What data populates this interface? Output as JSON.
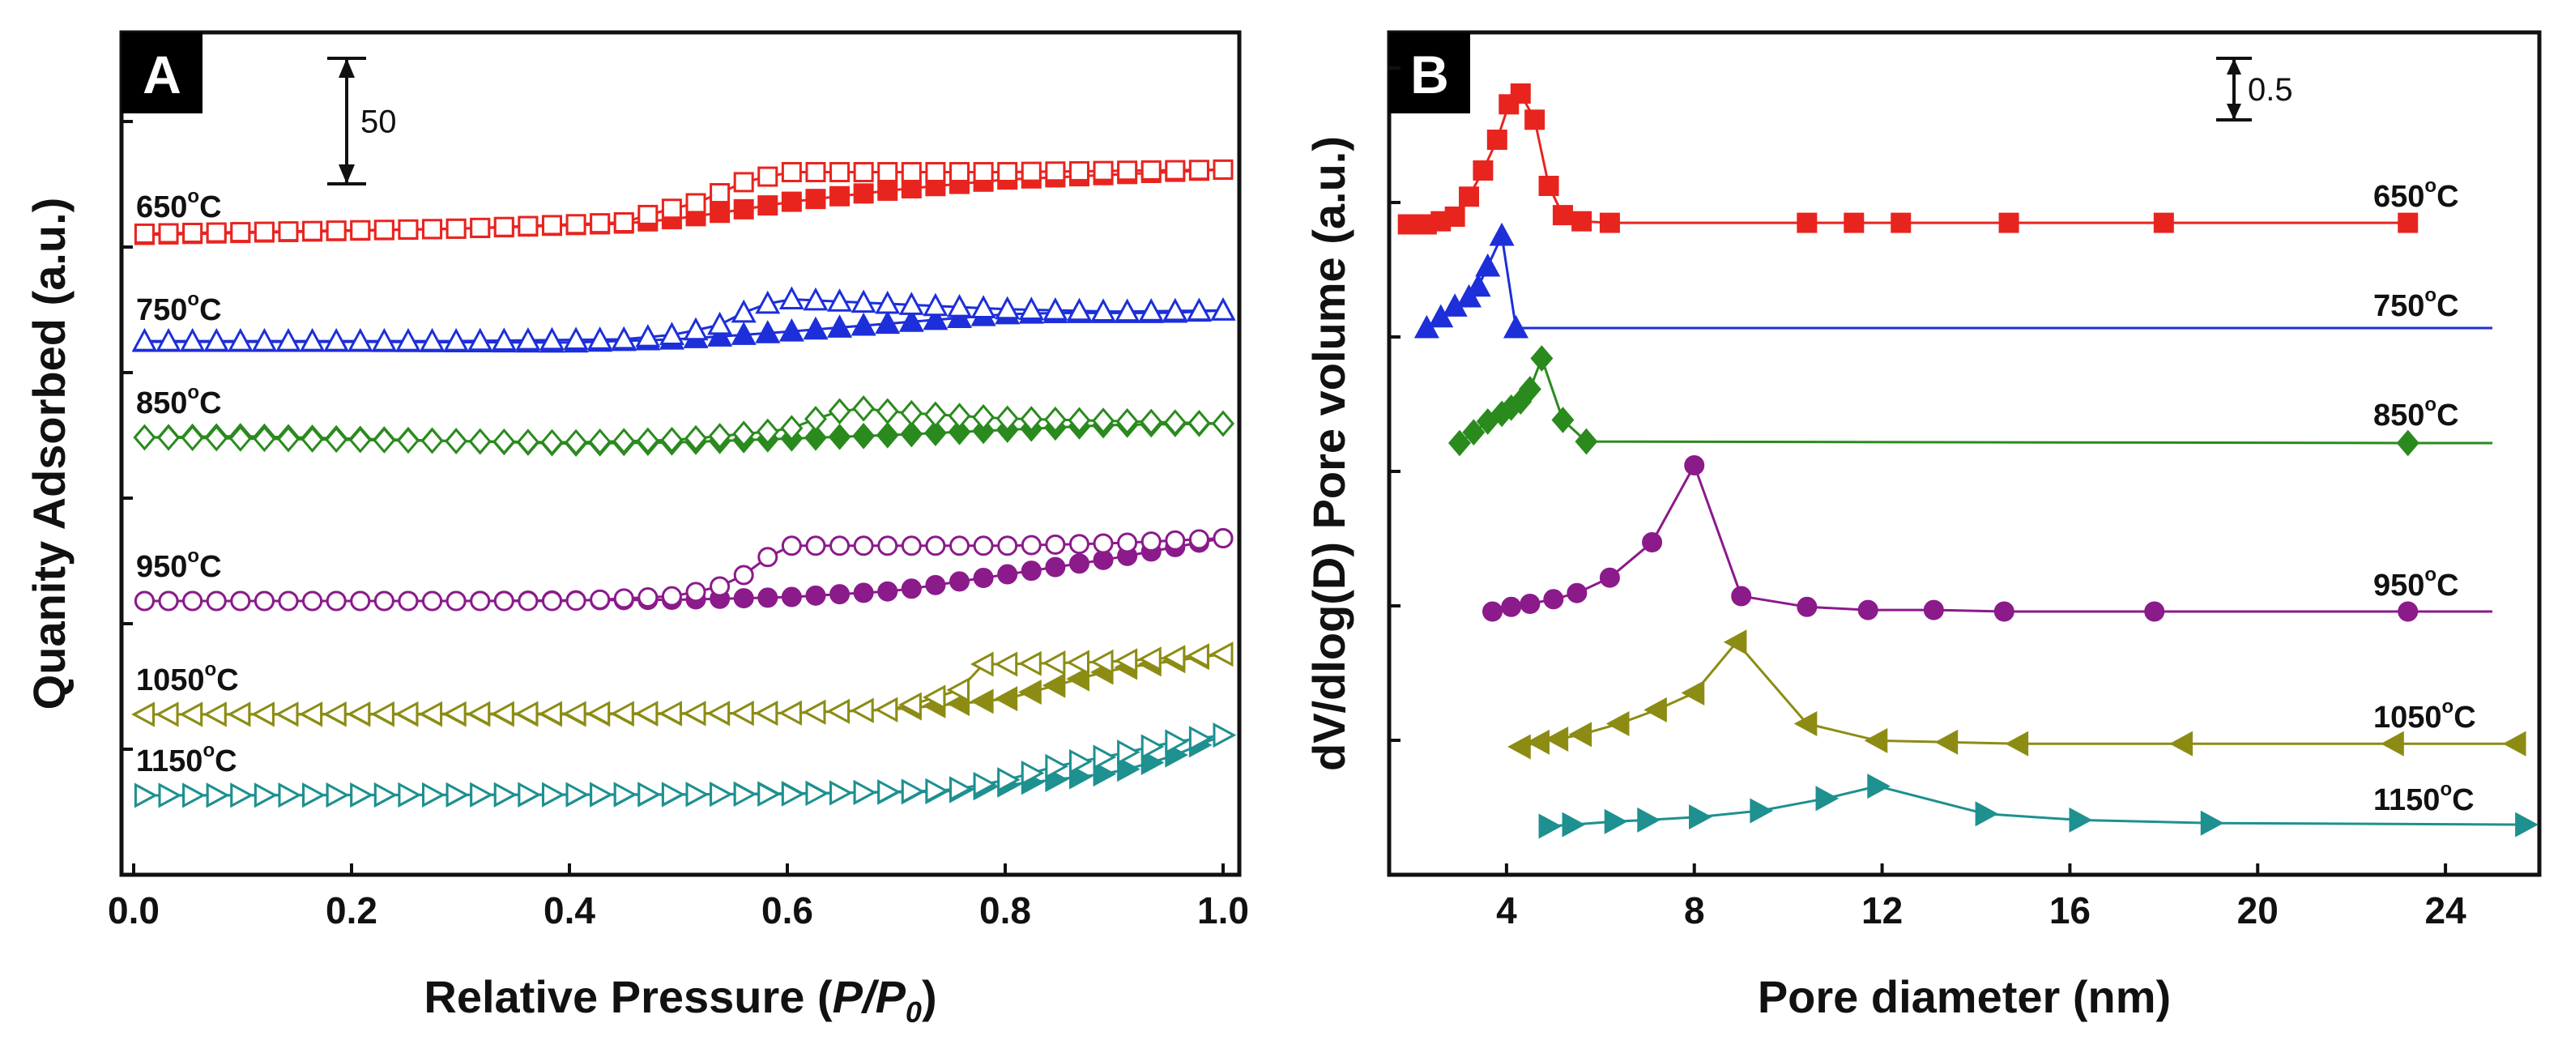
{
  "colors": {
    "650": "#e8241f",
    "750": "#1c2fd9",
    "850": "#2a8a1e",
    "950": "#8b1a8b",
    "1050": "#8c8c14",
    "1150": "#1e9090"
  },
  "chart_data": [
    {
      "type": "line",
      "panel_label": "A",
      "xlabel_main": "Relative Pressure (",
      "xlabel_italic": "P/P",
      "xlabel_sub": "0",
      "xlabel_end": ")",
      "ylabel": "Quanity Adsorbed (a.u.)",
      "xlim": [
        0.0,
        1.0
      ],
      "ylim": [
        0,
        100
      ],
      "xticks": [
        "0.0",
        "0.2",
        "0.4",
        "0.6",
        "0.8",
        "1.0"
      ],
      "scale_bar": {
        "label": "50",
        "value": 50
      },
      "series": [
        {
          "temp": "650",
          "label": "650",
          "unit": "C",
          "marker": "square",
          "adsorption": [
            [
              0.01,
              0.0
            ],
            [
              0.3,
              2.5
            ],
            [
              0.45,
              4.5
            ],
            [
              0.5,
              6.5
            ],
            [
              0.55,
              9.5
            ],
            [
              0.6,
              13
            ],
            [
              0.7,
              18
            ],
            [
              0.8,
              22
            ],
            [
              0.9,
              24
            ],
            [
              1.0,
              26
            ]
          ],
          "desorption": [
            [
              1.0,
              26
            ],
            [
              0.8,
              25
            ],
            [
              0.65,
              25
            ],
            [
              0.6,
              25
            ],
            [
              0.56,
              21
            ],
            [
              0.52,
              13
            ],
            [
              0.48,
              9
            ],
            [
              0.45,
              5
            ],
            [
              0.3,
              2.5
            ],
            [
              0.01,
              0.5
            ]
          ]
        },
        {
          "temp": "750",
          "label": "750",
          "unit": "C",
          "marker": "triangle-up",
          "adsorption": [
            [
              0.01,
              0.0
            ],
            [
              0.2,
              0.0
            ],
            [
              0.4,
              -0.3
            ],
            [
              0.5,
              1.0
            ],
            [
              0.6,
              4.0
            ],
            [
              0.7,
              7.5
            ],
            [
              0.8,
              11
            ],
            [
              0.85,
              11.5
            ],
            [
              0.95,
              11.5
            ],
            [
              1.0,
              12.5
            ]
          ],
          "desorption": [
            [
              1.0,
              12.5
            ],
            [
              0.9,
              12
            ],
            [
              0.8,
              13
            ],
            [
              0.7,
              15
            ],
            [
              0.6,
              17
            ],
            [
              0.57,
              14
            ],
            [
              0.54,
              7
            ],
            [
              0.5,
              3
            ],
            [
              0.45,
              1
            ],
            [
              0.3,
              0.3
            ],
            [
              0.01,
              0.3
            ]
          ]
        },
        {
          "temp": "850",
          "label": "850",
          "unit": "C",
          "marker": "diamond",
          "adsorption": [
            [
              0.01,
              0.0
            ],
            [
              0.1,
              0.5
            ],
            [
              0.3,
              -1.5
            ],
            [
              0.4,
              -2.5
            ],
            [
              0.5,
              -2.0
            ],
            [
              0.6,
              -0.5
            ],
            [
              0.7,
              1.0
            ],
            [
              0.8,
              3.0
            ],
            [
              0.9,
              5.0
            ],
            [
              1.0,
              5.5
            ]
          ],
          "desorption": [
            [
              1.0,
              5.5
            ],
            [
              0.9,
              6.5
            ],
            [
              0.8,
              7.5
            ],
            [
              0.7,
              10
            ],
            [
              0.66,
              12
            ],
            [
              0.63,
              8
            ],
            [
              0.6,
              3
            ],
            [
              0.55,
              1
            ],
            [
              0.5,
              -1
            ],
            [
              0.4,
              -2
            ],
            [
              0.2,
              -1
            ],
            [
              0.01,
              0.0
            ]
          ]
        },
        {
          "temp": "950",
          "label": "950",
          "unit": "C",
          "marker": "circle",
          "adsorption": [
            [
              0.01,
              0.0
            ],
            [
              0.3,
              0.0
            ],
            [
              0.5,
              0.5
            ],
            [
              0.6,
              1.5
            ],
            [
              0.7,
              4.0
            ],
            [
              0.8,
              10.5
            ],
            [
              0.9,
              17
            ],
            [
              1.0,
              25
            ]
          ],
          "desorption": [
            [
              1.0,
              25
            ],
            [
              0.9,
              23
            ],
            [
              0.8,
              22
            ],
            [
              0.7,
              22
            ],
            [
              0.6,
              22
            ],
            [
              0.58,
              17
            ],
            [
              0.55,
              7
            ],
            [
              0.5,
              2
            ],
            [
              0.4,
              0.0
            ],
            [
              0.01,
              0.0
            ]
          ]
        },
        {
          "temp": "1050",
          "label": "1050",
          "unit": "C",
          "marker": "triangle-left",
          "adsorption": [
            [
              0.01,
              0.0
            ],
            [
              0.4,
              0.0
            ],
            [
              0.6,
              0.5
            ],
            [
              0.7,
              2.0
            ],
            [
              0.8,
              6.0
            ],
            [
              0.9,
              18
            ],
            [
              1.0,
              24
            ]
          ],
          "desorption": [
            [
              1.0,
              24
            ],
            [
              0.9,
              21
            ],
            [
              0.8,
              20
            ],
            [
              0.78,
              20
            ],
            [
              0.76,
              10
            ],
            [
              0.7,
              2
            ],
            [
              0.6,
              0.5
            ],
            [
              0.01,
              0.0
            ]
          ]
        },
        {
          "temp": "1150",
          "label": "1150",
          "unit": "C",
          "marker": "triangle-right",
          "adsorption": [
            [
              0.01,
              0.0
            ],
            [
              0.5,
              0.3
            ],
            [
              0.75,
              1.5
            ],
            [
              0.8,
              4.0
            ],
            [
              0.9,
              9
            ],
            [
              0.95,
              15
            ],
            [
              1.0,
              24
            ]
          ],
          "desorption": [
            [
              1.0,
              24
            ],
            [
              0.95,
              21
            ],
            [
              0.9,
              16
            ],
            [
              0.85,
              12
            ],
            [
              0.8,
              6
            ],
            [
              0.75,
              2
            ],
            [
              0.6,
              0.5
            ],
            [
              0.01,
              0.0
            ]
          ]
        }
      ]
    },
    {
      "type": "line",
      "panel_label": "B",
      "xlabel": "Pore diameter (nm)",
      "ylabel": "dV/dlog(D) Pore volume (a.u.)",
      "xlim": [
        1.5,
        26
      ],
      "xticks": [
        4,
        8,
        12,
        16,
        20,
        24
      ],
      "scale_bar": {
        "label": "0.5",
        "value": 0.5
      },
      "series": [
        {
          "temp": "650",
          "label": "650",
          "unit": "C",
          "marker": "square",
          "points": [
            [
              1.9,
              0.0
            ],
            [
              2.3,
              0.0
            ],
            [
              2.6,
              0.02
            ],
            [
              2.9,
              0.05
            ],
            [
              3.2,
              0.18
            ],
            [
              3.5,
              0.35
            ],
            [
              3.8,
              0.55
            ],
            [
              4.05,
              0.78
            ],
            [
              4.3,
              0.85
            ],
            [
              4.6,
              0.68
            ],
            [
              4.9,
              0.25
            ],
            [
              5.2,
              0.06
            ],
            [
              5.6,
              0.02
            ],
            [
              6.2,
              0.01
            ],
            [
              10.4,
              0.01
            ],
            [
              11.4,
              0.01
            ],
            [
              12.4,
              0.01
            ],
            [
              14.7,
              0.01
            ],
            [
              18.0,
              0.01
            ],
            [
              23.2,
              0.01
            ]
          ]
        },
        {
          "temp": "750",
          "label": "750",
          "unit": "C",
          "marker": "triangle-up",
          "points": [
            [
              2.3,
              0.0
            ],
            [
              2.6,
              0.07
            ],
            [
              2.9,
              0.14
            ],
            [
              3.2,
              0.2
            ],
            [
              3.4,
              0.27
            ],
            [
              3.6,
              0.4
            ],
            [
              3.9,
              0.6
            ],
            [
              4.2,
              0.0
            ],
            [
              25,
              0.0
            ]
          ]
        },
        {
          "temp": "850",
          "label": "850",
          "unit": "C",
          "marker": "diamond",
          "points": [
            [
              3.0,
              0.0
            ],
            [
              3.3,
              0.07
            ],
            [
              3.6,
              0.14
            ],
            [
              3.9,
              0.19
            ],
            [
              4.1,
              0.23
            ],
            [
              4.3,
              0.27
            ],
            [
              4.5,
              0.35
            ],
            [
              4.75,
              0.55
            ],
            [
              5.2,
              0.15
            ],
            [
              5.7,
              0.01
            ],
            [
              23.2,
              0.0
            ],
            [
              25,
              0.0
            ]
          ]
        },
        {
          "temp": "950",
          "label": "950",
          "unit": "C",
          "marker": "circle",
          "points": [
            [
              3.7,
              0.0
            ],
            [
              4.1,
              0.03
            ],
            [
              4.5,
              0.05
            ],
            [
              5.0,
              0.08
            ],
            [
              5.5,
              0.12
            ],
            [
              6.2,
              0.22
            ],
            [
              7.1,
              0.45
            ],
            [
              8.0,
              0.95
            ],
            [
              9.0,
              0.1
            ],
            [
              10.4,
              0.03
            ],
            [
              11.7,
              0.01
            ],
            [
              13.1,
              0.01
            ],
            [
              14.6,
              0.0
            ],
            [
              17.8,
              0.0
            ],
            [
              23.2,
              0.0
            ],
            [
              25,
              0.0
            ]
          ]
        },
        {
          "temp": "1050",
          "label": "1050",
          "unit": "C",
          "marker": "triangle-left",
          "points": [
            [
              4.3,
              0.0
            ],
            [
              4.7,
              0.03
            ],
            [
              5.1,
              0.05
            ],
            [
              5.6,
              0.08
            ],
            [
              6.4,
              0.15
            ],
            [
              7.2,
              0.24
            ],
            [
              8.0,
              0.35
            ],
            [
              8.9,
              0.68
            ],
            [
              10.4,
              0.15
            ],
            [
              11.9,
              0.04
            ],
            [
              13.4,
              0.03
            ],
            [
              14.9,
              0.02
            ],
            [
              18.4,
              0.02
            ],
            [
              22.9,
              0.02
            ],
            [
              25.5,
              0.02
            ]
          ]
        },
        {
          "temp": "1150",
          "label": "1150",
          "unit": "C",
          "marker": "triangle-right",
          "points": [
            [
              4.9,
              0.0
            ],
            [
              5.4,
              0.01
            ],
            [
              6.3,
              0.03
            ],
            [
              7.0,
              0.04
            ],
            [
              8.1,
              0.06
            ],
            [
              9.4,
              0.1
            ],
            [
              10.8,
              0.18
            ],
            [
              11.9,
              0.26
            ],
            [
              14.2,
              0.08
            ],
            [
              16.2,
              0.04
            ],
            [
              19.0,
              0.02
            ],
            [
              25.7,
              0.01
            ]
          ]
        }
      ]
    }
  ]
}
